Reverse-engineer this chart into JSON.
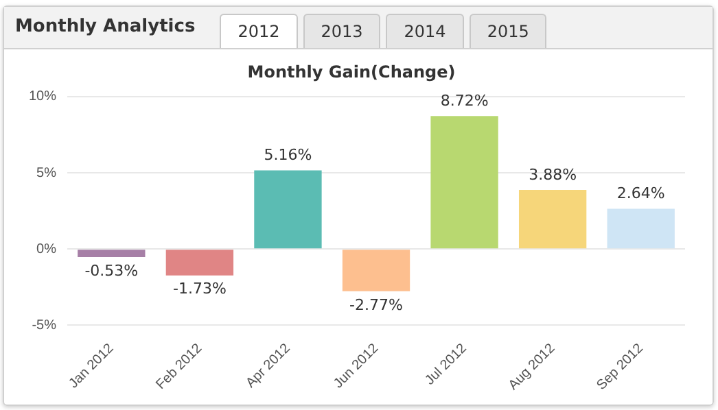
{
  "chart_data": {
    "type": "bar",
    "title": "Monthly Gain(Change)",
    "annotations": [
      "Monthly Analytics",
      "2012",
      "2013",
      "2014",
      "2015"
    ],
    "categories": [
      "Jan 2012",
      "Feb 2012",
      "Apr 2012",
      "Jun 2012",
      "Jul 2012",
      "Aug 2012",
      "Sep 2012"
    ],
    "values": [
      -0.53,
      -1.73,
      5.16,
      -2.77,
      8.72,
      3.88,
      2.64
    ],
    "value_labels": [
      "-0.53%",
      "-1.73%",
      "5.16%",
      "-2.77%",
      "8.72%",
      "3.88%",
      "2.64%"
    ],
    "colors": [
      "#a67fa6",
      "#e08585",
      "#5bbcb3",
      "#fdbf8f",
      "#b8d870",
      "#f6d67a",
      "#cfe5f5"
    ],
    "ylim": [
      -5,
      10
    ],
    "yticks": [
      {
        "value": -5,
        "label": "-5%"
      },
      {
        "value": 0,
        "label": "0%"
      },
      {
        "value": 5,
        "label": "5%"
      },
      {
        "value": 10,
        "label": "10%"
      }
    ],
    "grid": "y",
    "legend": false
  }
}
